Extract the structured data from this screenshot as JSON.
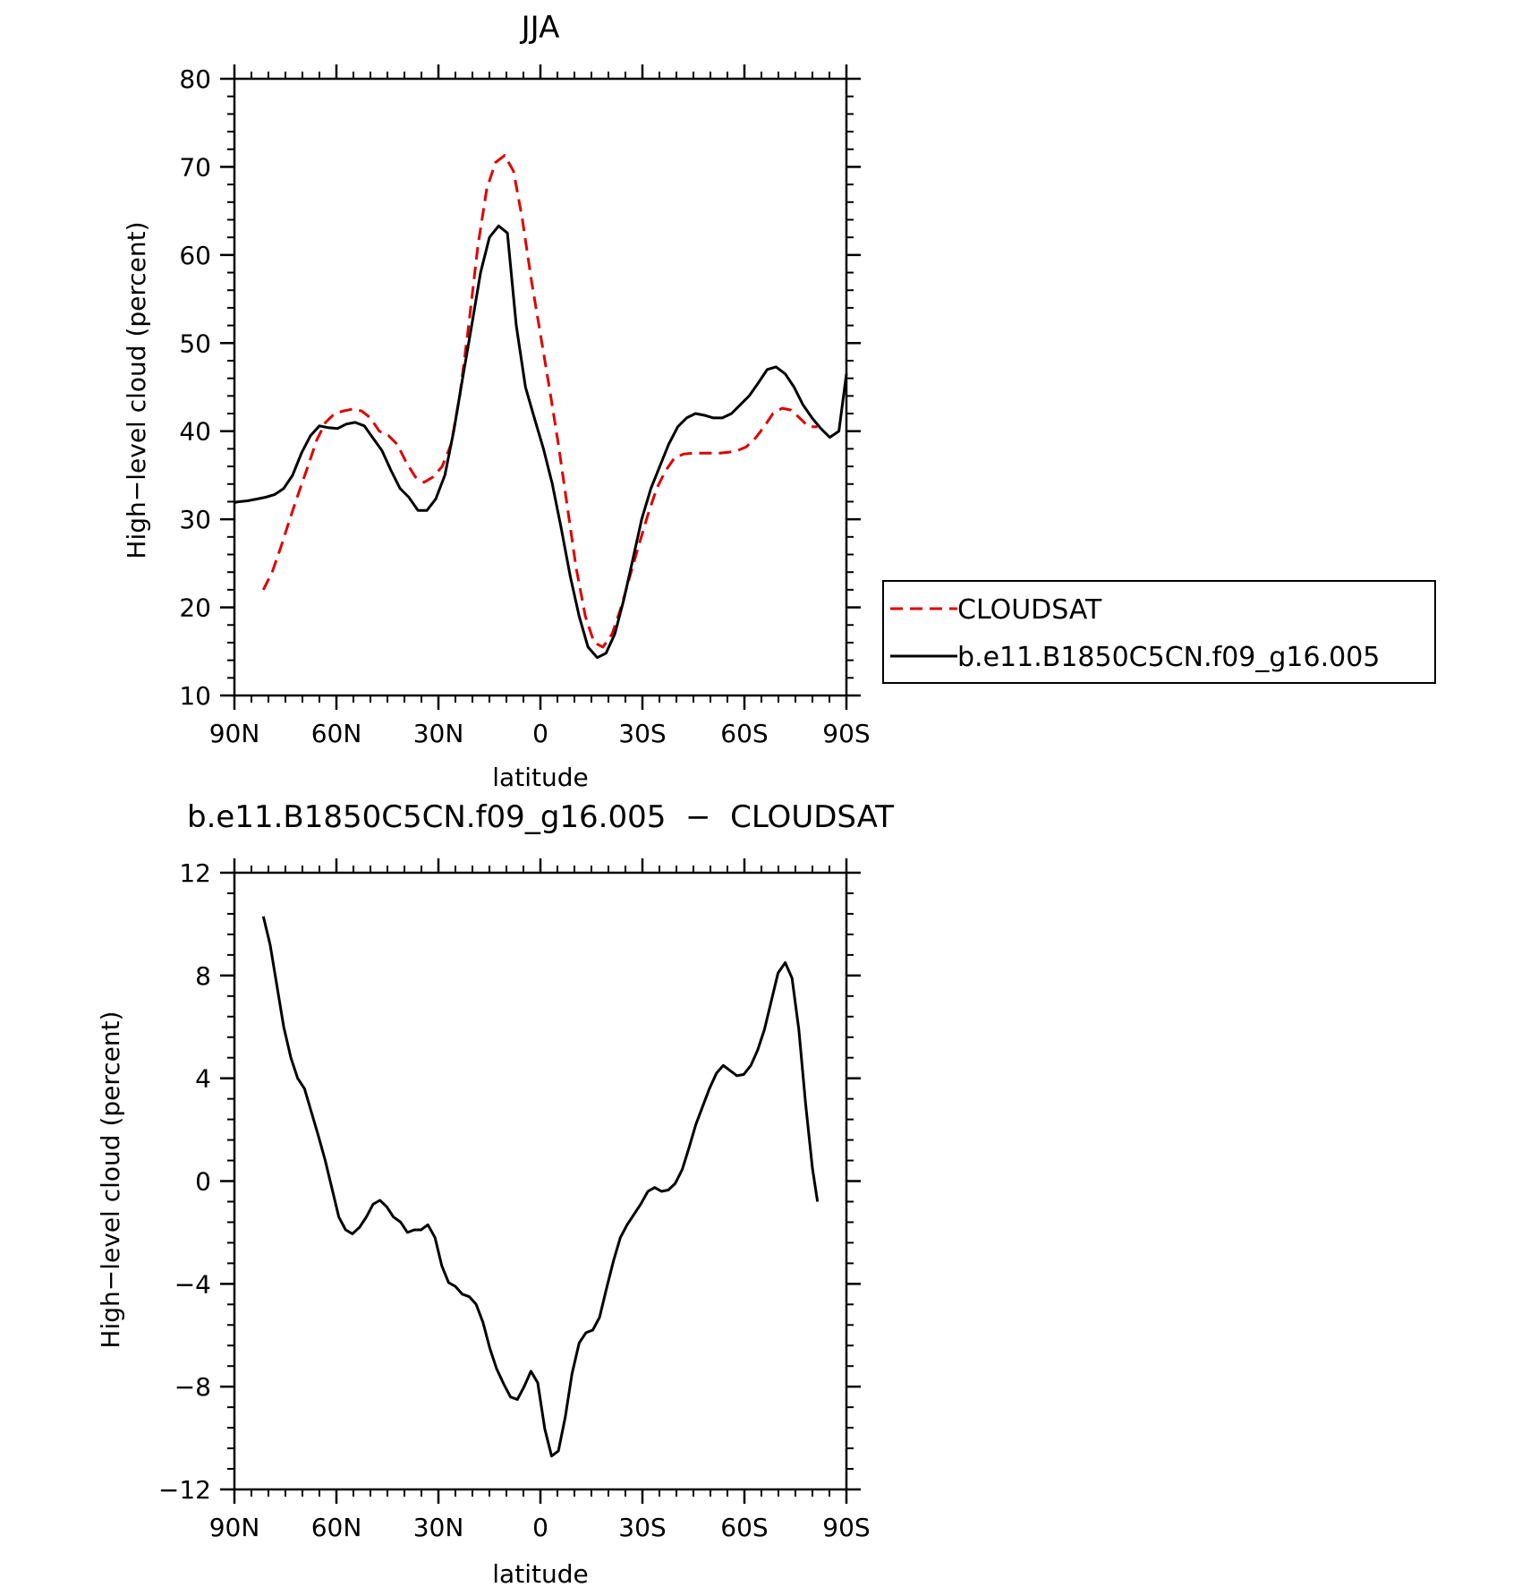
{
  "chart_data": [
    {
      "type": "line",
      "title": "JJA",
      "xlabel": "latitude",
      "ylabel": "High−level cloud (percent)",
      "xlim": [
        90,
        -90
      ],
      "ylim": [
        10,
        80
      ],
      "x_ticks": [
        90,
        60,
        30,
        0,
        -30,
        -60,
        -90
      ],
      "x_tick_labels": [
        "90N",
        "60N",
        "30N",
        "0",
        "30S",
        "60S",
        "90S"
      ],
      "y_ticks": [
        10,
        20,
        30,
        40,
        50,
        60,
        70,
        80
      ],
      "y_tick_labels": [
        "10",
        "20",
        "30",
        "40",
        "50",
        "60",
        "70",
        "80"
      ],
      "legend_position": "right",
      "series": [
        {
          "name": "CLOUDSAT",
          "color": "#e00000",
          "dash": "dashed",
          "x": [
            81.5,
            78.9,
            76.2,
            73.7,
            71.1,
            68.4,
            65.8,
            63.2,
            60.5,
            57.9,
            55.3,
            52.6,
            50,
            47.4,
            44.7,
            42.1,
            39.5,
            36.8,
            34.2,
            31.6,
            28.9,
            26.3,
            23.7,
            21.1,
            18.4,
            15.8,
            13.2,
            10.5,
            7.9,
            5.3,
            2.6,
            0,
            -2.6,
            -5.3,
            -7.9,
            -10.5,
            -13.2,
            -15.8,
            -18.4,
            -21.1,
            -23.7,
            -26.3,
            -28.9,
            -31.6,
            -34.2,
            -36.8,
            -39.5,
            -42.1,
            -44.7,
            -47.4,
            -50,
            -52.6,
            -55.3,
            -57.9,
            -60.5,
            -63.2,
            -65.8,
            -68.4,
            -71.1,
            -73.7,
            -76.2,
            -78.9,
            -81.5
          ],
          "y": [
            22,
            24,
            27,
            30,
            33,
            36,
            39,
            41,
            42,
            42.3,
            42.5,
            42.3,
            41.5,
            40,
            39.5,
            38.5,
            36.5,
            34.8,
            34.2,
            34.8,
            36,
            38.5,
            44,
            52,
            61,
            67.5,
            70.5,
            71.3,
            69.5,
            64,
            57,
            51,
            45,
            38.5,
            31.5,
            24.5,
            19,
            16,
            15.5,
            17,
            20,
            23.5,
            27,
            30.5,
            33.5,
            35.5,
            37,
            37.4,
            37.5,
            37.5,
            37.5,
            37.5,
            37.6,
            37.8,
            38.2,
            39.2,
            40.5,
            42,
            42.6,
            42.4,
            41.5,
            40.5,
            40.5
          ]
        },
        {
          "name": "b.e11.B1850C5CN.f09_g16.005",
          "color": "#000000",
          "dash": "solid",
          "x": [
            90,
            88.7,
            86.1,
            83.4,
            80.8,
            78.2,
            75.5,
            72.9,
            70.3,
            67.6,
            65,
            62.4,
            59.7,
            57.1,
            54.5,
            51.8,
            49.2,
            46.6,
            43.9,
            41.3,
            38.7,
            36,
            33.4,
            30.8,
            28.1,
            25.5,
            22.9,
            20.2,
            17.6,
            15,
            12.3,
            9.7,
            7.1,
            4.4,
            1.8,
            -0.9,
            -3.5,
            -6.1,
            -8.8,
            -11.4,
            -14,
            -16.7,
            -19.3,
            -21.9,
            -24.6,
            -27.2,
            -29.8,
            -32.5,
            -35.1,
            -37.7,
            -40.4,
            -43,
            -45.6,
            -48.3,
            -50.9,
            -53.5,
            -56.2,
            -58.8,
            -61.4,
            -64.1,
            -66.7,
            -69.3,
            -72,
            -74.6,
            -77.2,
            -79.9,
            -82.5,
            -85.1,
            -87.8,
            -90
          ],
          "y": [
            31.9,
            32,
            32.1,
            32.3,
            32.5,
            32.8,
            33.5,
            35,
            37.5,
            39.5,
            40.6,
            40.4,
            40.3,
            40.8,
            41,
            40.6,
            39.2,
            37.8,
            35.5,
            33.5,
            32.5,
            31,
            31,
            32.3,
            35,
            40,
            46,
            52,
            58,
            62,
            63.3,
            62.5,
            52,
            45,
            41.5,
            38,
            34,
            29,
            23.5,
            19,
            15.5,
            14.3,
            14.8,
            17,
            21,
            25.5,
            30,
            33.5,
            36,
            38.5,
            40.5,
            41.5,
            42,
            41.8,
            41.5,
            41.5,
            42,
            43,
            44,
            45.5,
            47,
            47.3,
            46.5,
            45,
            43,
            41.5,
            40.3,
            39.3,
            40,
            46.5
          ]
        }
      ]
    },
    {
      "type": "line",
      "title": "b.e11.B1850C5CN.f09_g16.005  −  CLOUDSAT",
      "xlabel": "latitude",
      "ylabel": "High−level cloud (percent)",
      "xlim": [
        90,
        -90
      ],
      "ylim": [
        -12,
        12
      ],
      "x_ticks": [
        90,
        60,
        30,
        0,
        -30,
        -60,
        -90
      ],
      "x_tick_labels": [
        "90N",
        "60N",
        "30N",
        "0",
        "30S",
        "60S",
        "90S"
      ],
      "y_ticks": [
        -12,
        -8,
        -4,
        0,
        4,
        8,
        12
      ],
      "y_tick_labels": [
        "−12",
        "−8",
        "−4",
        "0",
        "4",
        "8",
        "12"
      ],
      "series": [
        {
          "color": "#000000",
          "dash": "solid",
          "x": [
            81.5,
            79.5,
            77.5,
            75.5,
            73.4,
            71.4,
            69.4,
            67.4,
            65.4,
            63.3,
            61.3,
            59.3,
            57.3,
            55.3,
            53.2,
            51.2,
            49.2,
            47.2,
            45.2,
            43.2,
            41.1,
            39.1,
            37.1,
            35.1,
            33.1,
            31,
            29,
            27,
            25,
            23,
            20.9,
            18.9,
            16.9,
            14.9,
            12.9,
            10.8,
            8.8,
            6.8,
            4.8,
            2.8,
            0.8,
            -1.3,
            -3.3,
            -5.3,
            -7.3,
            -9.3,
            -11.4,
            -13.4,
            -15.4,
            -17.4,
            -19.4,
            -21.5,
            -23.5,
            -25.5,
            -27.5,
            -29.5,
            -31.6,
            -33.6,
            -35.6,
            -37.6,
            -39.6,
            -41.7,
            -43.7,
            -45.7,
            -47.7,
            -49.7,
            -51.8,
            -53.8,
            -55.8,
            -57.8,
            -59.8,
            -61.9,
            -63.9,
            -65.9,
            -67.9,
            -69.9,
            -72,
            -74,
            -76,
            -78,
            -80,
            -81.5
          ],
          "y": [
            10.3,
            9.2,
            7.6,
            6,
            4.8,
            4,
            3.6,
            2.7,
            1.8,
            0.8,
            -0.3,
            -1.4,
            -1.9,
            -2.05,
            -1.8,
            -1.4,
            -0.9,
            -0.75,
            -1,
            -1.4,
            -1.6,
            -2,
            -1.9,
            -1.9,
            -1.7,
            -2.2,
            -3.3,
            -3.95,
            -4.1,
            -4.4,
            -4.5,
            -4.8,
            -5.5,
            -6.5,
            -7.3,
            -7.9,
            -8.4,
            -8.5,
            -8,
            -7.4,
            -7.85,
            -9.65,
            -10.7,
            -10.5,
            -9.2,
            -7.5,
            -6.3,
            -5.9,
            -5.8,
            -5.3,
            -4.2,
            -3.1,
            -2.2,
            -1.7,
            -1.3,
            -0.9,
            -0.4,
            -0.25,
            -0.4,
            -0.35,
            -0.1,
            0.45,
            1.3,
            2.2,
            2.9,
            3.6,
            4.2,
            4.5,
            4.3,
            4.1,
            4.15,
            4.5,
            5.1,
            5.9,
            7,
            8.1,
            8.5,
            7.9,
            5.9,
            3,
            0.5,
            -0.8
          ]
        }
      ]
    }
  ]
}
